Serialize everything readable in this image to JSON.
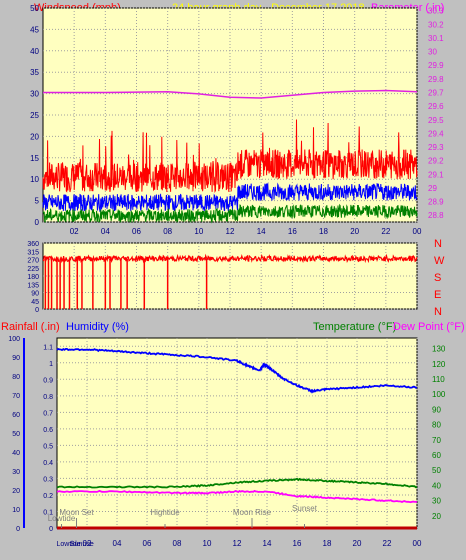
{
  "header": {
    "left_label": "Windspeed (mph)",
    "center_label": "24 hour graph day - December 17 2018",
    "right_label": "Barometer (.in)"
  },
  "bottom_header": {
    "rainfall_label": "Rainfall (.in)",
    "humidity_label": "Humidity (%)",
    "temperature_label": "Temperature (°F)",
    "dewpoint_label": "Dew Point (°F)"
  },
  "x_ticks": [
    "02",
    "04",
    "06",
    "08",
    "10",
    "12",
    "14",
    "16",
    "18",
    "20",
    "22",
    "00"
  ],
  "colors": {
    "plot_bg": "#ffffc0",
    "frame_bg": "#c0c0c0",
    "wind_gust": "#ff0000",
    "wind_avg": "#0000ff",
    "wind_low": "#008000",
    "barometer": "#e020e0",
    "direction": "#ff0000",
    "humidity": "#0000ff",
    "temperature": "#008000",
    "dewpoint": "#ff00ff",
    "rain": "#c00000",
    "header_yellow": "#ffff00",
    "label_red": "#ff0000",
    "label_blue": "#0000ff",
    "label_green": "#008000",
    "label_magenta": "#ff00ff"
  },
  "chart_data": [
    {
      "type": "line",
      "name": "wind-barometer",
      "x_range": [
        0,
        24
      ],
      "left_axis": {
        "ticks": [
          0,
          5,
          10,
          15,
          20,
          25,
          30,
          35,
          40,
          45,
          50
        ],
        "ylim": [
          0,
          50
        ]
      },
      "right_axis": {
        "ticks": [
          "28.8",
          "28.9",
          "29",
          "29.1",
          "29.2",
          "29.3",
          "29.4",
          "29.5",
          "29.6",
          "29.7",
          "29.8",
          "29.9",
          "30",
          "30.1",
          "30.2",
          "30.3"
        ],
        "ylim": [
          28.75,
          30.32
        ]
      },
      "series": [
        {
          "key": "gust",
          "axis": "left",
          "base": 10.5,
          "amp": 3.5,
          "rise_at": 12.5,
          "rise": 3
        },
        {
          "key": "avg",
          "axis": "left",
          "base": 4.5,
          "amp": 2,
          "rise_at": 12.5,
          "rise": 2.5
        },
        {
          "key": "low",
          "axis": "left",
          "base": 1.5,
          "amp": 1.5,
          "rise_at": 12.5,
          "rise": 1
        },
        {
          "key": "barometer",
          "axis": "right",
          "points": [
            [
              0,
              29.7
            ],
            [
              4,
              29.7
            ],
            [
              8,
              29.705
            ],
            [
              10,
              29.69
            ],
            [
              12,
              29.665
            ],
            [
              14,
              29.66
            ],
            [
              16,
              29.68
            ],
            [
              18,
              29.7
            ],
            [
              20,
              29.71
            ],
            [
              22,
              29.715
            ],
            [
              24,
              29.705
            ]
          ]
        }
      ]
    },
    {
      "type": "line",
      "name": "wind-direction",
      "x_range": [
        0,
        24
      ],
      "y_ticks": [
        0,
        45,
        90,
        135,
        180,
        225,
        270,
        315,
        360
      ],
      "ylim": [
        0,
        360
      ],
      "compass_labels": [
        "N",
        "W",
        "S",
        "E",
        "N"
      ],
      "base": 275,
      "spikes": [
        0.15,
        0.35,
        0.55,
        0.9,
        1.1,
        1.35,
        1.7,
        2.2,
        2.5,
        3.2,
        4.0,
        4.3,
        5.0,
        5.4,
        6.5,
        8.0,
        10.5
      ]
    },
    {
      "type": "line",
      "name": "humidity-temperature",
      "x_range": [
        0,
        24
      ],
      "left_axis": {
        "ticks": [
          0,
          10,
          20,
          30,
          40,
          50,
          60,
          70,
          80,
          90,
          100
        ],
        "ylim": [
          0,
          100
        ]
      },
      "rain_axis": {
        "ticks": [
          "0",
          "0.1",
          "0.2",
          "0.3",
          "0.4",
          "0.5",
          "0.6",
          "0.7",
          "0.8",
          "0.9",
          "1",
          "1.1"
        ],
        "ylim": [
          0,
          1.15
        ]
      },
      "right_axis": {
        "ticks": [
          20,
          30,
          40,
          50,
          60,
          70,
          80,
          90,
          100,
          110,
          120,
          130
        ],
        "ylim": [
          12,
          137
        ]
      },
      "series": [
        {
          "key": "humidity",
          "axis": "left",
          "points": [
            [
              0,
              94
            ],
            [
              2,
              94
            ],
            [
              4,
              93
            ],
            [
              6,
              92
            ],
            [
              8,
              91
            ],
            [
              10,
              90
            ],
            [
              12,
              88
            ],
            [
              12.8,
              85
            ],
            [
              13.5,
              83
            ],
            [
              13.8,
              86
            ],
            [
              14.2,
              84
            ],
            [
              15,
              79
            ],
            [
              16,
              75
            ],
            [
              17,
              72
            ],
            [
              18,
              73
            ],
            [
              20,
              74
            ],
            [
              22,
              75
            ],
            [
              24,
              74
            ]
          ]
        },
        {
          "key": "temperature",
          "axis": "right",
          "points": [
            [
              0,
              39
            ],
            [
              4,
              39
            ],
            [
              8,
              39
            ],
            [
              10,
              40
            ],
            [
              12,
              42
            ],
            [
              14,
              43
            ],
            [
              16,
              44
            ],
            [
              18,
              43
            ],
            [
              20,
              42
            ],
            [
              22,
              41
            ],
            [
              24,
              39
            ]
          ]
        },
        {
          "key": "dewpoint",
          "axis": "right",
          "points": [
            [
              0,
              36
            ],
            [
              4,
              36
            ],
            [
              8,
              35
            ],
            [
              10,
              35
            ],
            [
              12,
              36
            ],
            [
              14,
              36
            ],
            [
              16,
              33
            ],
            [
              18,
              32
            ],
            [
              20,
              31
            ],
            [
              22,
              30
            ],
            [
              24,
              29
            ]
          ]
        },
        {
          "key": "rain",
          "axis": "rain",
          "points": [
            [
              0,
              0
            ],
            [
              24,
              0
            ]
          ]
        }
      ],
      "annotations": [
        {
          "label": "Lowtide",
          "x": 0.3
        },
        {
          "label": "Moon Set",
          "x": 1.3
        },
        {
          "label": "Hightide",
          "x": 7.2
        },
        {
          "label": "Moon Rise",
          "x": 13.0
        },
        {
          "label": "Sunset",
          "x": 16.5
        }
      ],
      "bottom_labels": [
        {
          "label": "Lowtide",
          "x": 0.1
        },
        {
          "label": "Sunrise",
          "x": 1.0
        }
      ]
    }
  ]
}
